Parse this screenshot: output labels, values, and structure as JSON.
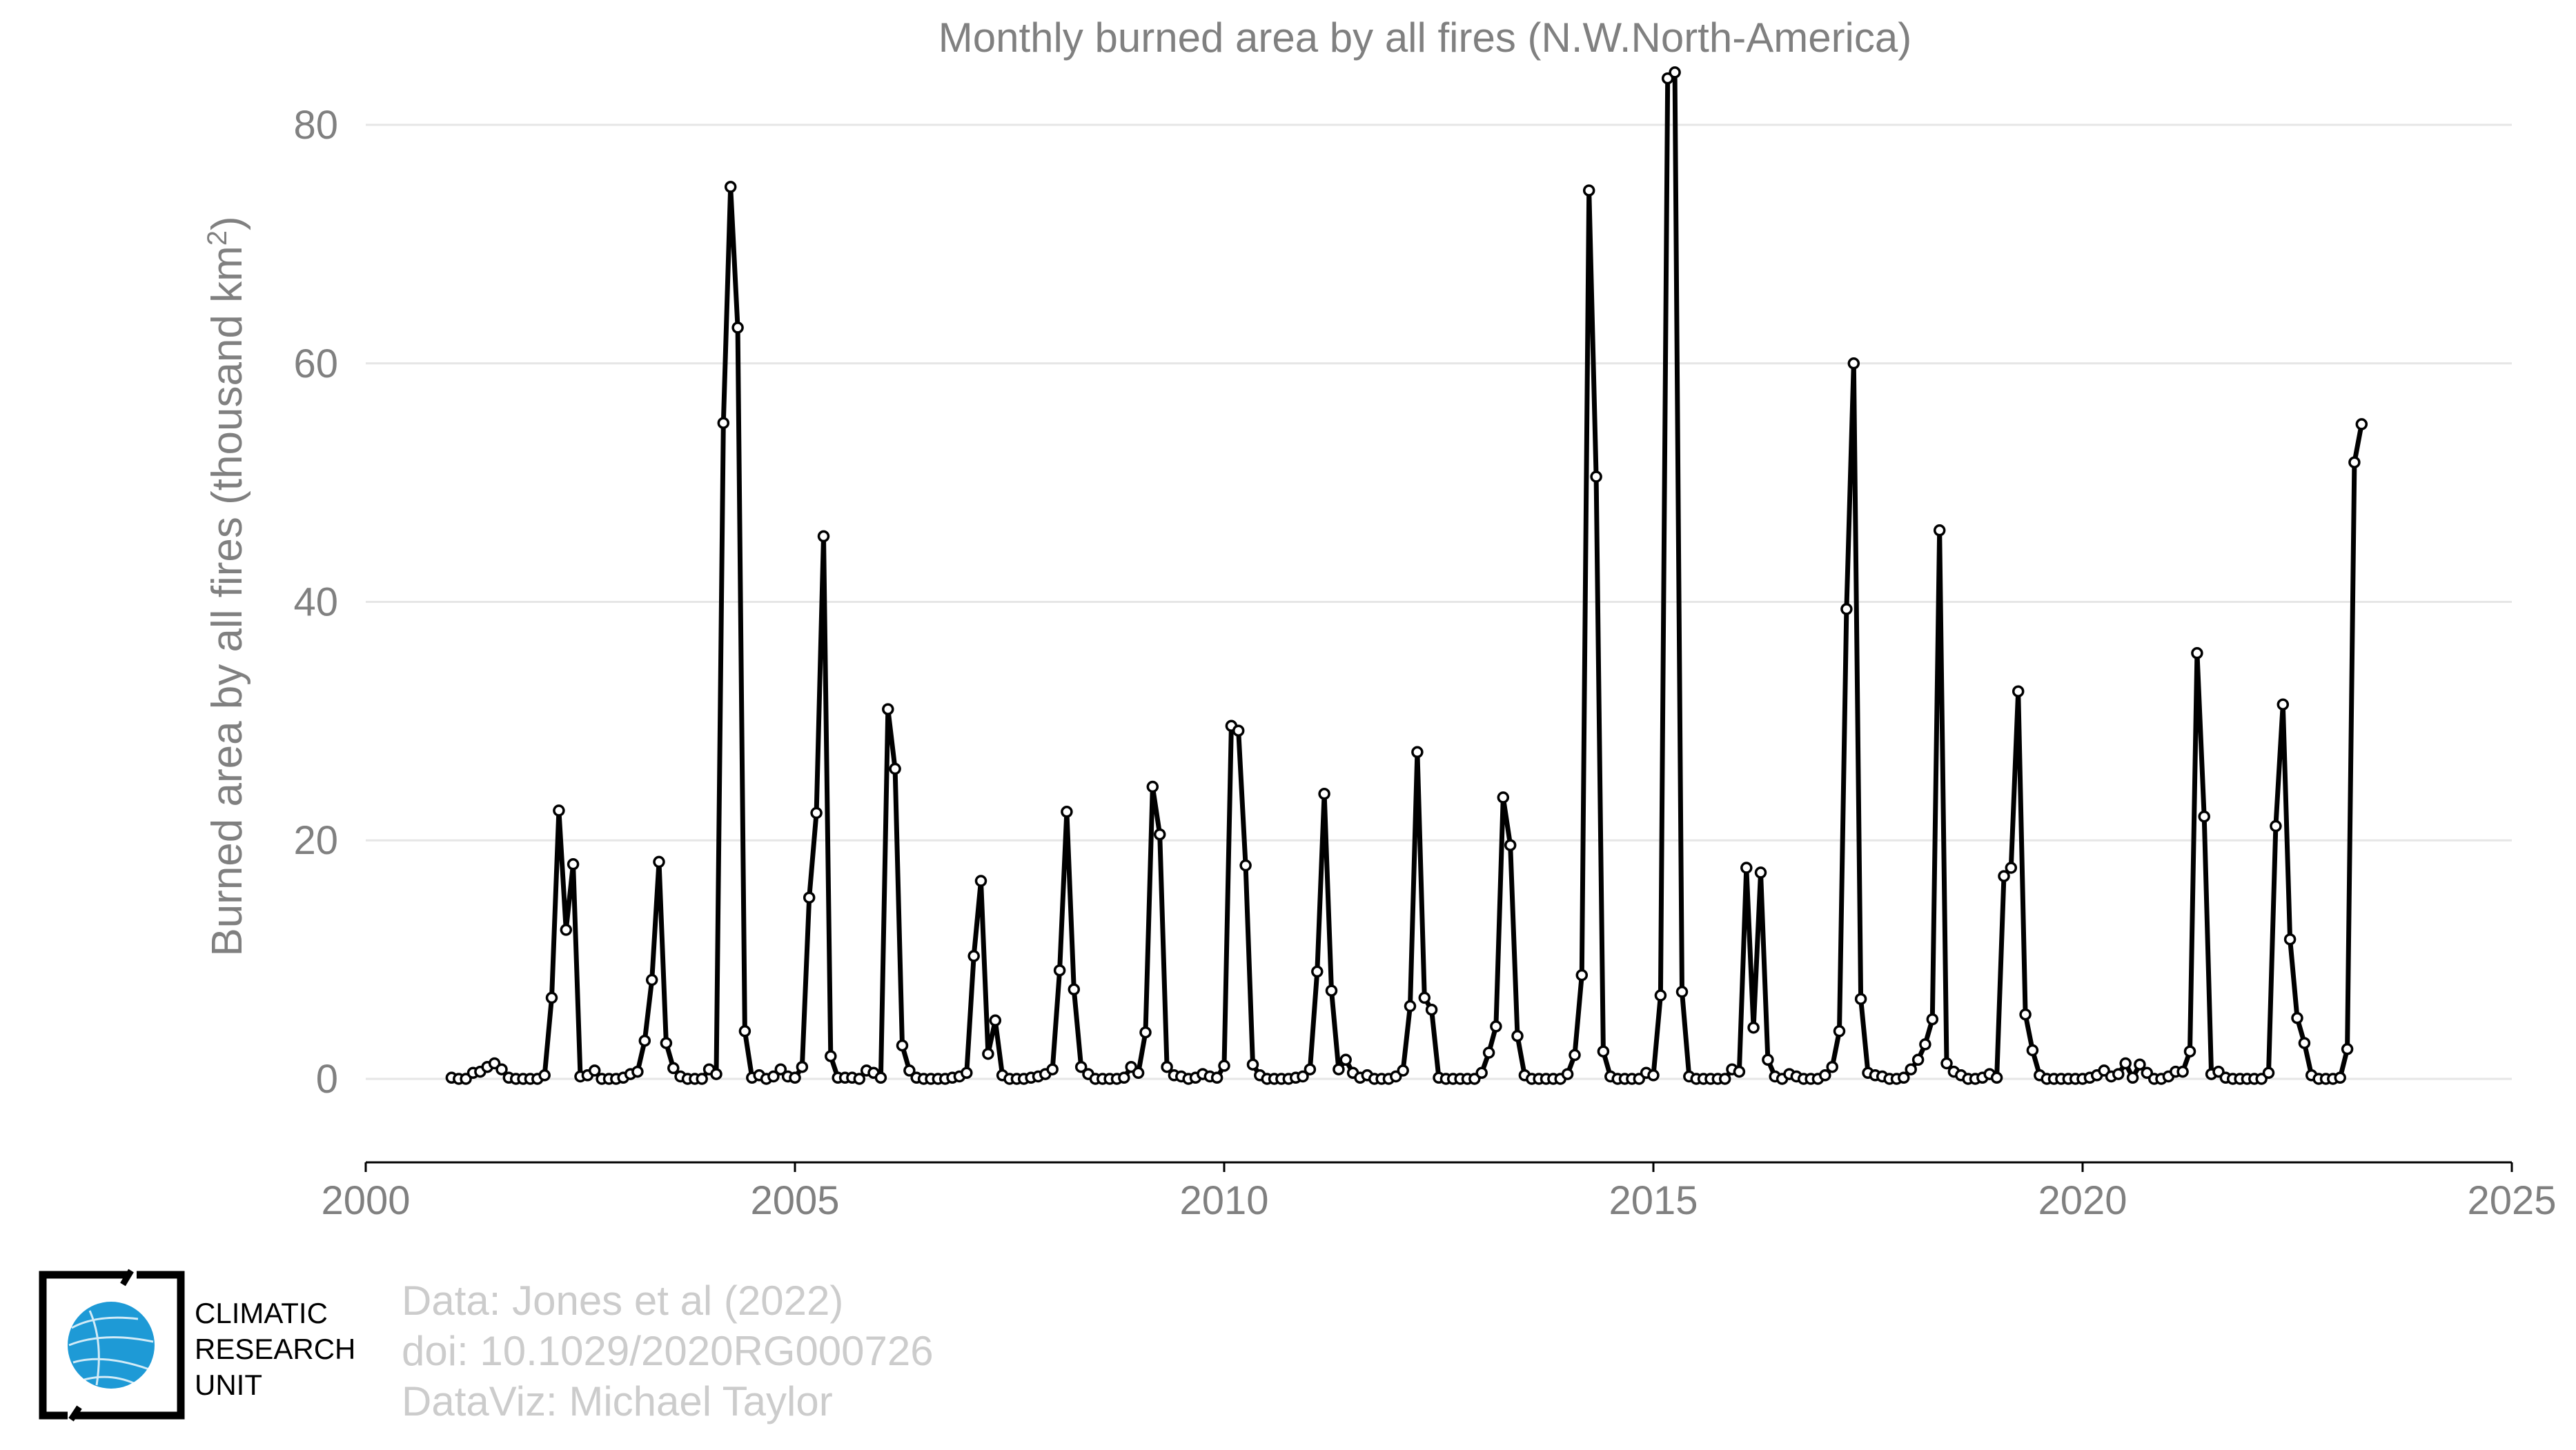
{
  "chart_data": {
    "type": "line",
    "title": "Monthly burned area by all fires (N.W.North-America)",
    "ylabel": "Burned area by all fires (thousand km",
    "ylabel_sup": "2",
    "ylabel_end": ")",
    "xlabel": "",
    "x_start": "2001-01",
    "x_step": "monthly",
    "xlim": [
      2000,
      2025
    ],
    "ylim": [
      -7,
      87
    ],
    "xticks": [
      2000,
      2005,
      2010,
      2015,
      2020,
      2025
    ],
    "yticks": [
      0,
      20,
      40,
      60,
      80
    ],
    "grid": true,
    "series": [
      {
        "values": [
          0.1,
          0,
          0,
          0.5,
          0.6,
          1,
          1.3,
          0.8,
          0.1,
          0,
          0,
          0,
          0,
          0.3,
          6.8,
          22.5,
          12.5,
          18,
          0.2,
          0.3,
          0.7,
          0,
          0,
          0,
          0.1,
          0.4,
          0.6,
          3.2,
          8.3,
          18.2,
          3,
          0.9,
          0.2,
          0,
          0,
          0,
          0.8,
          0.4,
          55,
          74.8,
          63,
          4,
          0.1,
          0.3,
          0,
          0.2,
          0.8,
          0.2,
          0.1,
          1,
          15.2,
          22.3,
          45.5,
          1.9,
          0.1,
          0.1,
          0.1,
          0,
          0.7,
          0.5,
          0.1,
          31,
          26,
          2.8,
          0.7,
          0.1,
          0,
          0,
          0,
          0,
          0.1,
          0.2,
          0.5,
          10.3,
          16.6,
          2.1,
          4.9,
          0.3,
          0,
          0,
          0,
          0.1,
          0.2,
          0.4,
          0.8,
          9.1,
          22.4,
          7.5,
          1,
          0.4,
          0,
          0,
          0,
          0,
          0.1,
          1,
          0.5,
          3.9,
          24.5,
          20.5,
          1,
          0.3,
          0.2,
          0,
          0.1,
          0.4,
          0.2,
          0.1,
          1.1,
          29.6,
          29.2,
          17.9,
          1.2,
          0.3,
          0,
          0,
          0,
          0,
          0.1,
          0.2,
          0.8,
          9,
          23.9,
          7.4,
          0.8,
          1.6,
          0.5,
          0.1,
          0.3,
          0,
          0,
          0,
          0.2,
          0.7,
          6.1,
          27.4,
          6.8,
          5.8,
          0.1,
          0,
          0,
          0,
          0,
          0,
          0.5,
          2.2,
          4.4,
          23.6,
          19.6,
          3.6,
          0.3,
          0,
          0,
          0,
          0,
          0,
          0.4,
          2,
          8.7,
          74.5,
          50.5,
          2.3,
          0.2,
          0,
          0,
          0,
          0,
          0.5,
          0.3,
          7,
          83.9,
          84.4,
          7.3,
          0.2,
          0,
          0,
          0,
          0,
          0,
          0.8,
          0.6,
          17.7,
          4.3,
          17.3,
          1.6,
          0.2,
          0,
          0.4,
          0.2,
          0,
          0,
          0,
          0.3,
          1,
          4,
          39.4,
          60,
          6.7,
          0.5,
          0.3,
          0.2,
          0,
          0,
          0.1,
          0.8,
          1.6,
          2.9,
          5,
          46,
          1.3,
          0.6,
          0.3,
          0,
          0,
          0.1,
          0.4,
          0.1,
          17,
          17.7,
          32.5,
          5.4,
          2.4,
          0.3,
          0,
          0,
          0,
          0,
          0,
          0,
          0.1,
          0.3,
          0.7,
          0.2,
          0.4,
          1.3,
          0.1,
          1.2,
          0.5,
          0,
          0,
          0.2,
          0.6,
          0.6,
          2.3,
          35.7,
          22,
          0.4,
          0.6,
          0.1,
          0,
          0,
          0,
          0,
          0,
          0.5,
          21.2,
          31.4,
          11.7,
          5.1,
          3,
          0.3,
          0,
          0,
          0,
          0.1,
          2.5,
          51.7,
          54.9
        ]
      }
    ]
  },
  "credits": {
    "data": "Data: Jones et al (2022)",
    "doi": "doi: 10.1029/2020RG000726",
    "dataviz": "DataViz: Michael Taylor"
  },
  "logo": {
    "name": "cru-globe-logo",
    "lines": [
      "CLIMATIC",
      "RESEARCH",
      "UNIT"
    ],
    "globe_color": "#1e9ad6",
    "bracket_color": "#000000"
  }
}
